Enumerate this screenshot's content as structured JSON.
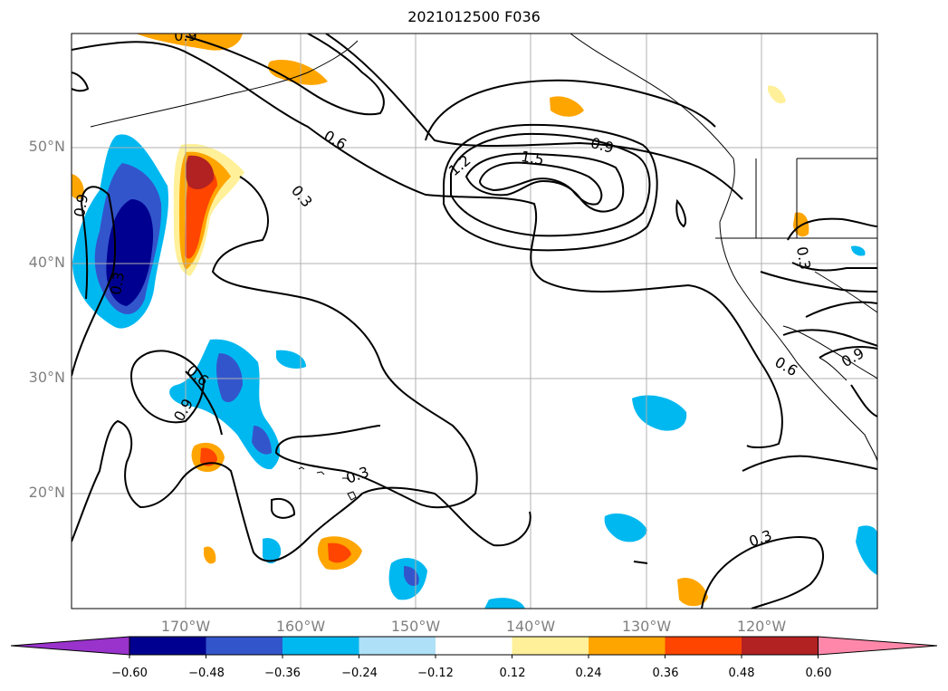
{
  "title": "2021012500 F036",
  "map": {
    "lat_labels": [
      "50°N",
      "40°N",
      "30°N",
      "20°N"
    ],
    "lon_labels": [
      "170°W",
      "160°W",
      "150°W",
      "140°W",
      "130°W",
      "120°W"
    ],
    "contour_labels": [
      "0.9",
      "0.6",
      "0.3",
      "1.2",
      "1.5",
      "0.9",
      "0.9",
      "0.3",
      "0.6",
      "0.9",
      "0.3",
      "0.3",
      "0.6",
      "0.9",
      "0.3"
    ],
    "colors": {
      "grid": "#b0b0b0",
      "contour": "#000000",
      "axis_label": "#808080"
    }
  },
  "colorbar": {
    "tick_labels": [
      "−0.60",
      "−0.48",
      "−0.36",
      "−0.24",
      "−0.12",
      "0.12",
      "0.24",
      "0.36",
      "0.48",
      "0.60"
    ],
    "colors": [
      "#9933cc",
      "#000090",
      "#3355cc",
      "#00b8f0",
      "#aee0f8",
      "#ffffff",
      "#fff099",
      "#ffa500",
      "#ff4500",
      "#b22222",
      "#ff88aa"
    ]
  }
}
